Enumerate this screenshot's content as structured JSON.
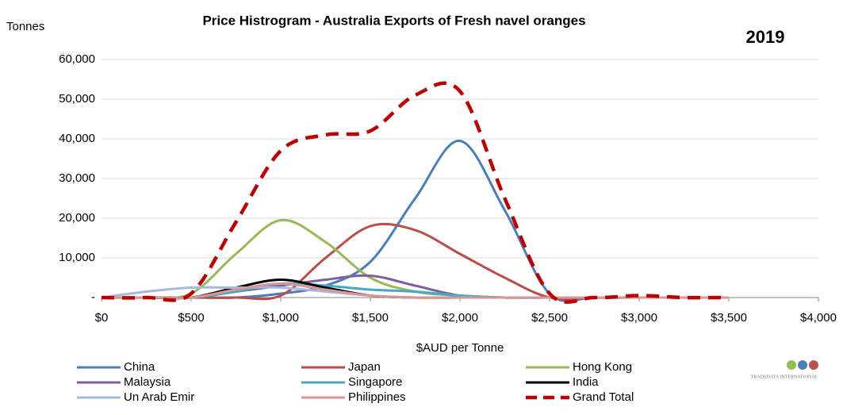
{
  "chart_data": {
    "type": "line",
    "title": "Price Histrogram - Australia Exports of Fresh navel oranges",
    "annotation": "2019",
    "y_label": "Tonnes",
    "x_label": "$AUD per Tonne",
    "logo_text": "TRADEDATA INTERNATIONAL",
    "x": [
      0,
      250,
      500,
      750,
      1000,
      1250,
      1500,
      1750,
      2000,
      2250,
      2500,
      2750,
      3000,
      3250,
      3500
    ],
    "xlim": [
      0,
      4000
    ],
    "xticks": [
      {
        "value": 0,
        "label": "$0"
      },
      {
        "value": 500,
        "label": "$500"
      },
      {
        "value": 1000,
        "label": "$1,000"
      },
      {
        "value": 1500,
        "label": "$1,500"
      },
      {
        "value": 2000,
        "label": "$2,000"
      },
      {
        "value": 2500,
        "label": "$2,500"
      },
      {
        "value": 3000,
        "label": "$3,000"
      },
      {
        "value": 3500,
        "label": "$3,500"
      },
      {
        "value": 4000,
        "label": "$4,000"
      }
    ],
    "ylim": [
      0,
      60000
    ],
    "yticks": [
      {
        "value": 0,
        "label": "-"
      },
      {
        "value": 10000,
        "label": "10,000"
      },
      {
        "value": 20000,
        "label": "20,000"
      },
      {
        "value": 30000,
        "label": "30,000"
      },
      {
        "value": 40000,
        "label": "40,000"
      },
      {
        "value": 50000,
        "label": "50,000"
      },
      {
        "value": 60000,
        "label": "60,000"
      }
    ],
    "grid": true,
    "series": [
      {
        "name": "China",
        "color": "#4a7ebb",
        "values": [
          0,
          0,
          0,
          0,
          1000,
          3000,
          9000,
          25000,
          39500,
          22000,
          1000,
          0,
          0,
          0,
          0
        ]
      },
      {
        "name": "Japan",
        "color": "#be4b48",
        "values": [
          0,
          0,
          0,
          0,
          500,
          10000,
          18000,
          17000,
          11000,
          5000,
          0,
          0,
          0,
          0,
          0
        ]
      },
      {
        "name": "Hong Kong",
        "color": "#98b954",
        "values": [
          0,
          0,
          1000,
          11000,
          19500,
          14000,
          5000,
          1500,
          500,
          0,
          0,
          0,
          0,
          0,
          0
        ]
      },
      {
        "name": "Malaysia",
        "color": "#7d5fa0",
        "values": [
          0,
          0,
          0,
          1500,
          3000,
          4500,
          5500,
          3000,
          500,
          0,
          0,
          0,
          0,
          0,
          0
        ]
      },
      {
        "name": "Singapore",
        "color": "#46aac4",
        "values": [
          0,
          0,
          0,
          1500,
          3500,
          3000,
          2000,
          1500,
          500,
          0,
          0,
          0,
          0,
          0,
          0
        ]
      },
      {
        "name": "India",
        "color": "#000000",
        "values": [
          0,
          0,
          0,
          2500,
          4500,
          2500,
          500,
          0,
          0,
          0,
          0,
          0,
          0,
          0,
          0
        ]
      },
      {
        "name": "Un Arab Emir",
        "color": "#a5b9e0",
        "values": [
          0,
          1500,
          2500,
          2500,
          2500,
          1500,
          500,
          0,
          0,
          0,
          0,
          0,
          0,
          0,
          0
        ]
      },
      {
        "name": "Philippines",
        "color": "#d99694",
        "values": [
          0,
          0,
          0,
          2000,
          3500,
          2000,
          500,
          0,
          0,
          0,
          0,
          0,
          0,
          0,
          0
        ]
      },
      {
        "name": "Grand Total",
        "color": "#c00000",
        "dashed": true,
        "values": [
          0,
          0,
          1000,
          19000,
          37000,
          41000,
          42000,
          51000,
          52000,
          25000,
          1000,
          0,
          500,
          0,
          0
        ]
      }
    ]
  }
}
